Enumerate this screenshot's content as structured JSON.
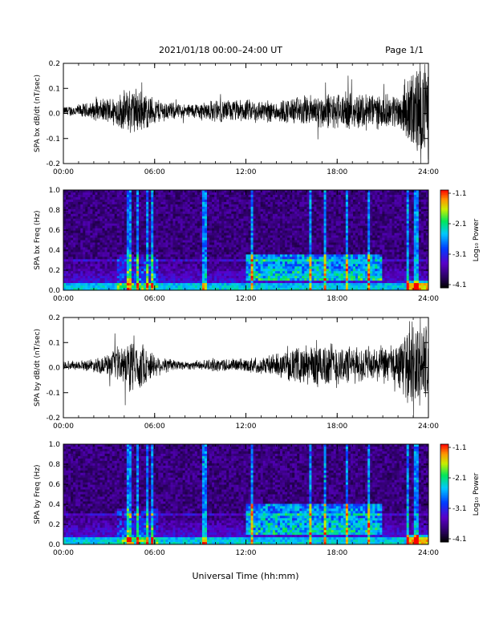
{
  "header": {
    "title": "2021/01/18  00:00–24:00 UT",
    "page": "Page 1/1"
  },
  "chart_data": [
    {
      "type": "line",
      "panel": "bx_waveform",
      "ylabel": "SPA bx dB/dt (nT/sec)",
      "ylim": [
        -0.2,
        0.2
      ],
      "yticks": [
        "0.2",
        "0.1",
        "0.0",
        "-0.1",
        "-0.2"
      ],
      "xlim": [
        "00:00",
        "24:00"
      ],
      "xticks": [
        "00:00",
        "06:00",
        "12:00",
        "18:00",
        "24:00"
      ],
      "amplitude_envelope": {
        "hours": [
          0,
          1,
          2,
          3,
          4,
          4.5,
          5,
          6,
          7,
          8,
          9,
          10,
          11,
          12,
          13,
          14,
          15,
          16,
          17,
          18,
          19,
          20,
          21,
          22,
          22.5,
          23,
          23.5,
          24
        ],
        "amplitude": [
          0.02,
          0.03,
          0.04,
          0.06,
          0.09,
          0.11,
          0.1,
          0.06,
          0.04,
          0.03,
          0.04,
          0.05,
          0.05,
          0.05,
          0.05,
          0.05,
          0.06,
          0.07,
          0.08,
          0.08,
          0.08,
          0.09,
          0.07,
          0.08,
          0.12,
          0.2,
          0.22,
          0.2
        ]
      },
      "color": "#000000"
    },
    {
      "type": "heatmap",
      "panel": "bx_spectrogram",
      "ylabel": "SPA bx Freq (Hz)",
      "ylim": [
        0.0,
        1.0
      ],
      "yticks": [
        "1.0",
        "0.8",
        "0.6",
        "0.4",
        "0.2",
        "0.0"
      ],
      "xlim": [
        "00:00",
        "24:00"
      ],
      "xticks": [
        "00:00",
        "06:00",
        "12:00",
        "18:00",
        "24:00"
      ],
      "colorbar": {
        "label": "Log₁₀ Power",
        "ticks": [
          "-1.1",
          "-2.1",
          "-3.1",
          "-4.1"
        ],
        "range": [
          -4.1,
          -1.1
        ]
      },
      "pc1_band_hz": [
        0.1,
        0.35
      ],
      "pc1_band_hours": [
        12,
        21
      ],
      "spikes_hours": [
        4.3,
        4.9,
        5.5,
        5.8,
        9.3,
        12.4,
        16.2,
        17.2,
        18.6,
        20.1,
        22.6,
        23.2
      ]
    },
    {
      "type": "line",
      "panel": "by_waveform",
      "ylabel": "SPA by dB/dt (nT/sec)",
      "ylim": [
        -0.2,
        0.2
      ],
      "yticks": [
        "0.2",
        "0.1",
        "0.0",
        "-0.1",
        "-0.2"
      ],
      "xlim": [
        "00:00",
        "24:00"
      ],
      "xticks": [
        "00:00",
        "06:00",
        "12:00",
        "18:00",
        "24:00"
      ],
      "amplitude_envelope": {
        "hours": [
          0,
          1,
          2,
          3,
          4,
          4.5,
          5,
          6,
          7,
          8,
          9,
          10,
          11,
          12,
          13,
          14,
          15,
          16,
          17,
          18,
          19,
          20,
          21,
          22,
          22.5,
          23,
          23.5,
          24
        ],
        "amplitude": [
          0.02,
          0.02,
          0.03,
          0.05,
          0.09,
          0.13,
          0.11,
          0.05,
          0.03,
          0.02,
          0.02,
          0.03,
          0.03,
          0.03,
          0.04,
          0.05,
          0.07,
          0.09,
          0.11,
          0.1,
          0.08,
          0.08,
          0.08,
          0.1,
          0.14,
          0.2,
          0.22,
          0.2
        ]
      },
      "color": "#000000"
    },
    {
      "type": "heatmap",
      "panel": "by_spectrogram",
      "ylabel": "SPA by Freq (Hz)",
      "ylim": [
        0.0,
        1.0
      ],
      "yticks": [
        "1.0",
        "0.8",
        "0.6",
        "0.4",
        "0.2",
        "0.0"
      ],
      "xlim": [
        "00:00",
        "24:00"
      ],
      "xticks": [
        "00:00",
        "06:00",
        "12:00",
        "18:00",
        "24:00"
      ],
      "colorbar": {
        "label": "Log₁₀ Power",
        "ticks": [
          "-1.1",
          "-2.1",
          "-3.1",
          "-4.1"
        ],
        "range": [
          -4.1,
          -1.1
        ]
      },
      "pc1_band_hz": [
        0.1,
        0.4
      ],
      "pc1_band_hours": [
        12,
        21
      ],
      "spikes_hours": [
        4.3,
        4.9,
        5.5,
        5.8,
        9.3,
        12.4,
        16.2,
        17.2,
        18.6,
        20.1,
        22.6,
        23.2
      ]
    }
  ],
  "xlabel": "Universal Time (hh:mm)"
}
